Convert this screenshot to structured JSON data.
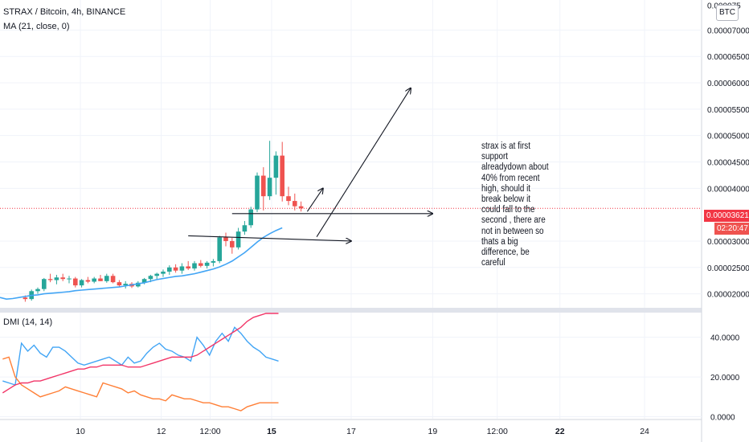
{
  "header": {
    "symbol_line": "STRAX / Bitcoin, 4h, BINANCE",
    "ma_label": "MA (21, close, 0)",
    "dmi_label": "DMI (14, 14)",
    "currency_button": "BTC"
  },
  "price_scale": {
    "ticks": [
      "0.00007000",
      "0.00006500",
      "0.00006000",
      "0.00005500",
      "0.00005000",
      "0.00004500",
      "0.00004000",
      "0.00003000",
      "0.00002500",
      "0.00002000"
    ],
    "top_partial": "0.000075",
    "last_price": "0.00003621",
    "countdown": "02:20:47"
  },
  "dmi_scale": {
    "ticks": [
      "40.0000",
      "20.0000",
      "0.0000"
    ]
  },
  "time_axis": {
    "labels": [
      "10",
      "12",
      "12:00",
      "15",
      "17",
      "19",
      "12:00",
      "22",
      "24"
    ]
  },
  "annotation": "strax is at first support alreadydown about 40% from recent high, should it break below it could fall to the second , there are not in between so thats a big difference, be careful",
  "colors": {
    "up": "#26a69a",
    "down": "#ef5350",
    "ma": "#42a5f5",
    "plus_di": "#42a5f5",
    "minus_di": "#ff7f36",
    "adx": "#f23668",
    "last_price": "#f23645",
    "countdown": "#ef5350"
  },
  "chart_data": [
    {
      "type": "candlestick",
      "title": "STRAX / Bitcoin, 4h, BINANCE",
      "ylim": [
        1.75e-05,
        7.57e-05
      ],
      "candles": [
        [
          1.93e-05,
          1.97e-05,
          1.85e-05,
          1.9e-05
        ],
        [
          1.9e-05,
          2.08e-05,
          1.87e-05,
          2.05e-05
        ],
        [
          2.05e-05,
          2.12e-05,
          2e-05,
          2.09e-05
        ],
        [
          2.09e-05,
          2.3e-05,
          2.05e-05,
          2.28e-05
        ],
        [
          2.28e-05,
          2.38e-05,
          2.22e-05,
          2.26e-05
        ],
        [
          2.26e-05,
          2.36e-05,
          2.18e-05,
          2.31e-05
        ],
        [
          2.31e-05,
          2.38e-05,
          2.24e-05,
          2.28e-05
        ],
        [
          2.28e-05,
          2.34e-05,
          2.2e-05,
          2.29e-05
        ],
        [
          2.29e-05,
          2.32e-05,
          2.12e-05,
          2.16e-05
        ],
        [
          2.16e-05,
          2.28e-05,
          2.12e-05,
          2.26e-05
        ],
        [
          2.26e-05,
          2.32e-05,
          2.2e-05,
          2.23e-05
        ],
        [
          2.23e-05,
          2.32e-05,
          2.2e-05,
          2.29e-05
        ],
        [
          2.29e-05,
          2.36e-05,
          2.24e-05,
          2.24e-05
        ],
        [
          2.24e-05,
          2.38e-05,
          2.21e-05,
          2.34e-05
        ],
        [
          2.34e-05,
          2.38e-05,
          2.2e-05,
          2.22e-05
        ],
        [
          2.22e-05,
          2.26e-05,
          2.13e-05,
          2.16e-05
        ],
        [
          2.16e-05,
          2.24e-05,
          2.1e-05,
          2.19e-05
        ],
        [
          2.19e-05,
          2.22e-05,
          2.11e-05,
          2.14e-05
        ],
        [
          2.14e-05,
          2.24e-05,
          2.12e-05,
          2.21e-05
        ],
        [
          2.21e-05,
          2.3e-05,
          2.18e-05,
          2.28e-05
        ],
        [
          2.28e-05,
          2.36e-05,
          2.22e-05,
          2.34e-05
        ],
        [
          2.34e-05,
          2.4e-05,
          2.28e-05,
          2.38e-05
        ],
        [
          2.38e-05,
          2.46e-05,
          2.32e-05,
          2.42e-05
        ],
        [
          2.42e-05,
          2.54e-05,
          2.36e-05,
          2.5e-05
        ],
        [
          2.5e-05,
          2.56e-05,
          2.4e-05,
          2.44e-05
        ],
        [
          2.44e-05,
          2.58e-05,
          2.38e-05,
          2.52e-05
        ],
        [
          2.52e-05,
          2.62e-05,
          2.45e-05,
          2.48e-05
        ],
        [
          2.48e-05,
          2.62e-05,
          2.44e-05,
          2.58e-05
        ],
        [
          2.58e-05,
          2.64e-05,
          2.5e-05,
          2.53e-05
        ],
        [
          2.53e-05,
          2.62e-05,
          2.48e-05,
          2.59e-05
        ],
        [
          2.59e-05,
          2.66e-05,
          2.52e-05,
          2.62e-05
        ],
        [
          2.62e-05,
          3.1e-05,
          2.58e-05,
          3.07e-05
        ],
        [
          3.07e-05,
          3.16e-05,
          2.9e-05,
          3e-05
        ],
        [
          3e-05,
          3.06e-05,
          2.76e-05,
          2.88e-05
        ],
        [
          2.88e-05,
          3.25e-05,
          2.84e-05,
          3.18e-05
        ],
        [
          3.18e-05,
          3.38e-05,
          3.12e-05,
          3.3e-05
        ],
        [
          3.3e-05,
          3.65e-05,
          3.25e-05,
          3.6e-05
        ],
        [
          3.6e-05,
          4.3e-05,
          3.55e-05,
          4.24e-05
        ],
        [
          4.24e-05,
          4.4e-05,
          3.58e-05,
          3.85e-05
        ],
        [
          3.85e-05,
          4.9e-05,
          3.78e-05,
          4.2e-05
        ],
        [
          4.2e-05,
          4.7e-05,
          3.88e-05,
          4.62e-05
        ],
        [
          4.62e-05,
          4.88e-05,
          3.75e-05,
          3.85e-05
        ],
        [
          3.85e-05,
          4.03e-05,
          3.68e-05,
          3.76e-05
        ],
        [
          3.76e-05,
          3.9e-05,
          3.58e-05,
          3.66e-05
        ],
        [
          3.66e-05,
          3.75e-05,
          3.56e-05,
          3.62e-05
        ]
      ],
      "ma_series": [
        1.9e-05,
        1.91e-05,
        1.93e-05,
        1.95e-05,
        1.97e-05,
        1.98e-05,
        2e-05,
        2.01e-05,
        2.02e-05,
        2.03e-05,
        2.04e-05,
        2.06e-05,
        2.07e-05,
        2.08e-05,
        2.09e-05,
        2.1e-05,
        2.11e-05,
        2.12e-05,
        2.13e-05,
        2.15e-05,
        2.17e-05,
        2.19e-05,
        2.21e-05,
        2.24e-05,
        2.27e-05,
        2.29e-05,
        2.31e-05,
        2.33e-05,
        2.34e-05,
        2.36e-05,
        2.38e-05,
        2.41e-05,
        2.44e-05,
        2.47e-05,
        2.51e-05,
        2.56e-05,
        2.62e-05,
        2.7e-05,
        2.78e-05,
        2.88e-05,
        2.98e-05,
        3.07e-05,
        3.14e-05,
        3.2e-05,
        3.25e-05
      ],
      "trendlines": [
        {
          "from": [
            3.1e-05,
            26
          ],
          "to": [
            3e-05,
            52
          ],
          "arrow": true
        },
        {
          "from": [
            3.52e-05,
            33
          ],
          "to": [
            3.52e-05,
            65
          ],
          "arrow": true
        },
        {
          "from": [
            3.56e-05,
            45
          ],
          "to": [
            4e-05,
            47.5
          ],
          "arrow": true
        },
        {
          "from": [
            3.08e-05,
            46.5
          ],
          "to": [
            5.9e-05,
            61.5
          ],
          "arrow": true
        }
      ]
    },
    {
      "type": "line",
      "title": "DMI (14, 14)",
      "ylim": [
        -1,
        52
      ],
      "series": [
        {
          "name": "+DI",
          "values": [
            18,
            17,
            16,
            37,
            33,
            36,
            32,
            30,
            35,
            35,
            33,
            30,
            27,
            26,
            27,
            28,
            29,
            30,
            28,
            26,
            30,
            27,
            28,
            32,
            35,
            37,
            34,
            33,
            31,
            30,
            28,
            40,
            36,
            31,
            38,
            42,
            38,
            45,
            42,
            38,
            35,
            33,
            30,
            29,
            28
          ]
        },
        {
          "name": "-DI",
          "values": [
            29,
            30,
            20,
            16,
            14,
            12,
            10,
            11,
            12,
            13,
            15,
            14,
            13,
            12,
            11,
            10,
            17,
            16,
            15,
            14,
            12,
            13,
            11,
            10,
            9,
            9,
            8,
            11,
            10,
            9,
            9,
            8,
            7,
            7,
            6,
            5,
            5,
            4,
            3,
            5,
            6,
            7,
            7,
            7,
            7
          ]
        },
        {
          "name": "ADX",
          "values": [
            12,
            14,
            16,
            17,
            17,
            18,
            18,
            19,
            20,
            21,
            22,
            23,
            24,
            24,
            25,
            25,
            26,
            26,
            26,
            26,
            25,
            25,
            25,
            26,
            27,
            28,
            29,
            30,
            30,
            30,
            30,
            31,
            33,
            35,
            37,
            39,
            41,
            43,
            45,
            48,
            50,
            51,
            52,
            52,
            52
          ]
        }
      ]
    }
  ]
}
